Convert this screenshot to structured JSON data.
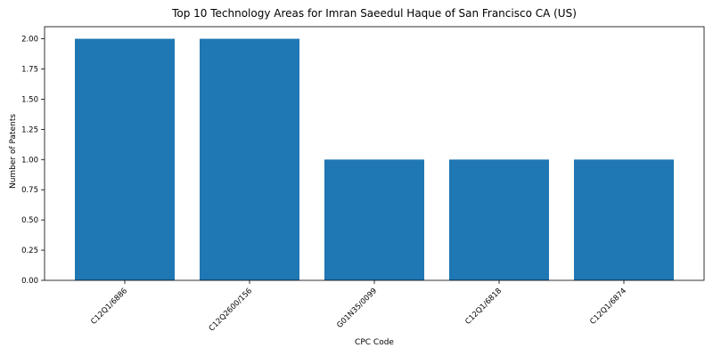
{
  "chart_data": {
    "type": "bar",
    "title": "Top 10 Technology Areas for Imran Saeedul Haque of San Francisco CA (US)",
    "xlabel": "CPC Code",
    "ylabel": "Number of Patents",
    "categories": [
      "C12Q1/6886",
      "C12Q2600/156",
      "G01N35/0099",
      "C12Q1/6818",
      "C12Q1/6874"
    ],
    "values": [
      2,
      2,
      1,
      1,
      1
    ],
    "ylim": [
      0,
      2.1
    ],
    "yticks": [
      "0.00",
      "0.25",
      "0.50",
      "0.75",
      "1.00",
      "1.25",
      "1.50",
      "1.75",
      "2.00"
    ],
    "bar_color": "#1f77b4",
    "grid": false,
    "legend": "none"
  }
}
